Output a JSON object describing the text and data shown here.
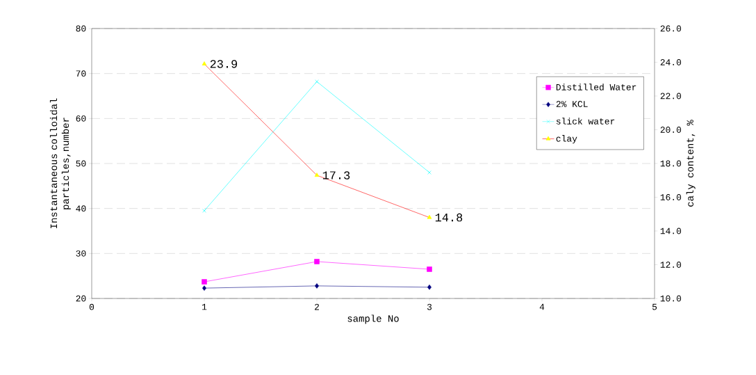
{
  "chart_data": {
    "type": "line",
    "xlabel": "sample No",
    "ylabel": "Instantaneous colloidal particles,number",
    "y2label": "caly content, %",
    "x": [
      1,
      2,
      3
    ],
    "series": [
      {
        "name": "Distilled Water",
        "color": "#ff00ff",
        "marker": "square",
        "values": [
          23.7,
          28.2,
          26.5
        ]
      },
      {
        "name": "2% KCL",
        "color": "#000080",
        "marker": "diamond",
        "values": [
          22.3,
          22.8,
          22.5
        ]
      },
      {
        "name": "slick water",
        "color": "#00ffff",
        "marker": "cross",
        "values": [
          39.5,
          68.2,
          48.0
        ]
      },
      {
        "name": "clay",
        "color": "#ff0000",
        "colors": [
          "#ffff00",
          "#ffff00",
          "#ffff00"
        ],
        "marker": "triangle",
        "axis": "y2",
        "values": [
          23.9,
          17.3,
          14.8
        ],
        "value_labels": [
          "23.9",
          "17.3",
          "14.8"
        ]
      }
    ],
    "xlim": [
      0,
      5
    ],
    "xticks": [
      0,
      1,
      2,
      3,
      4,
      5
    ],
    "ylim": [
      20,
      80
    ],
    "yticks": [
      20,
      30,
      40,
      50,
      60,
      70,
      80
    ],
    "y2lim": [
      10,
      26
    ],
    "y2ticks": [
      {
        "value": 10,
        "label": "10.0"
      },
      {
        "value": 12,
        "label": "12.0"
      },
      {
        "value": 14,
        "label": "14.0"
      },
      {
        "value": 16,
        "label": "16.0"
      },
      {
        "value": 18,
        "label": "18.0"
      },
      {
        "value": 20,
        "label": "20.0"
      },
      {
        "value": 22,
        "label": "22.0"
      },
      {
        "value": 24,
        "label": "24.0"
      },
      {
        "value": 26,
        "label": "26.0"
      }
    ],
    "grid": "y",
    "legend": "top right"
  }
}
